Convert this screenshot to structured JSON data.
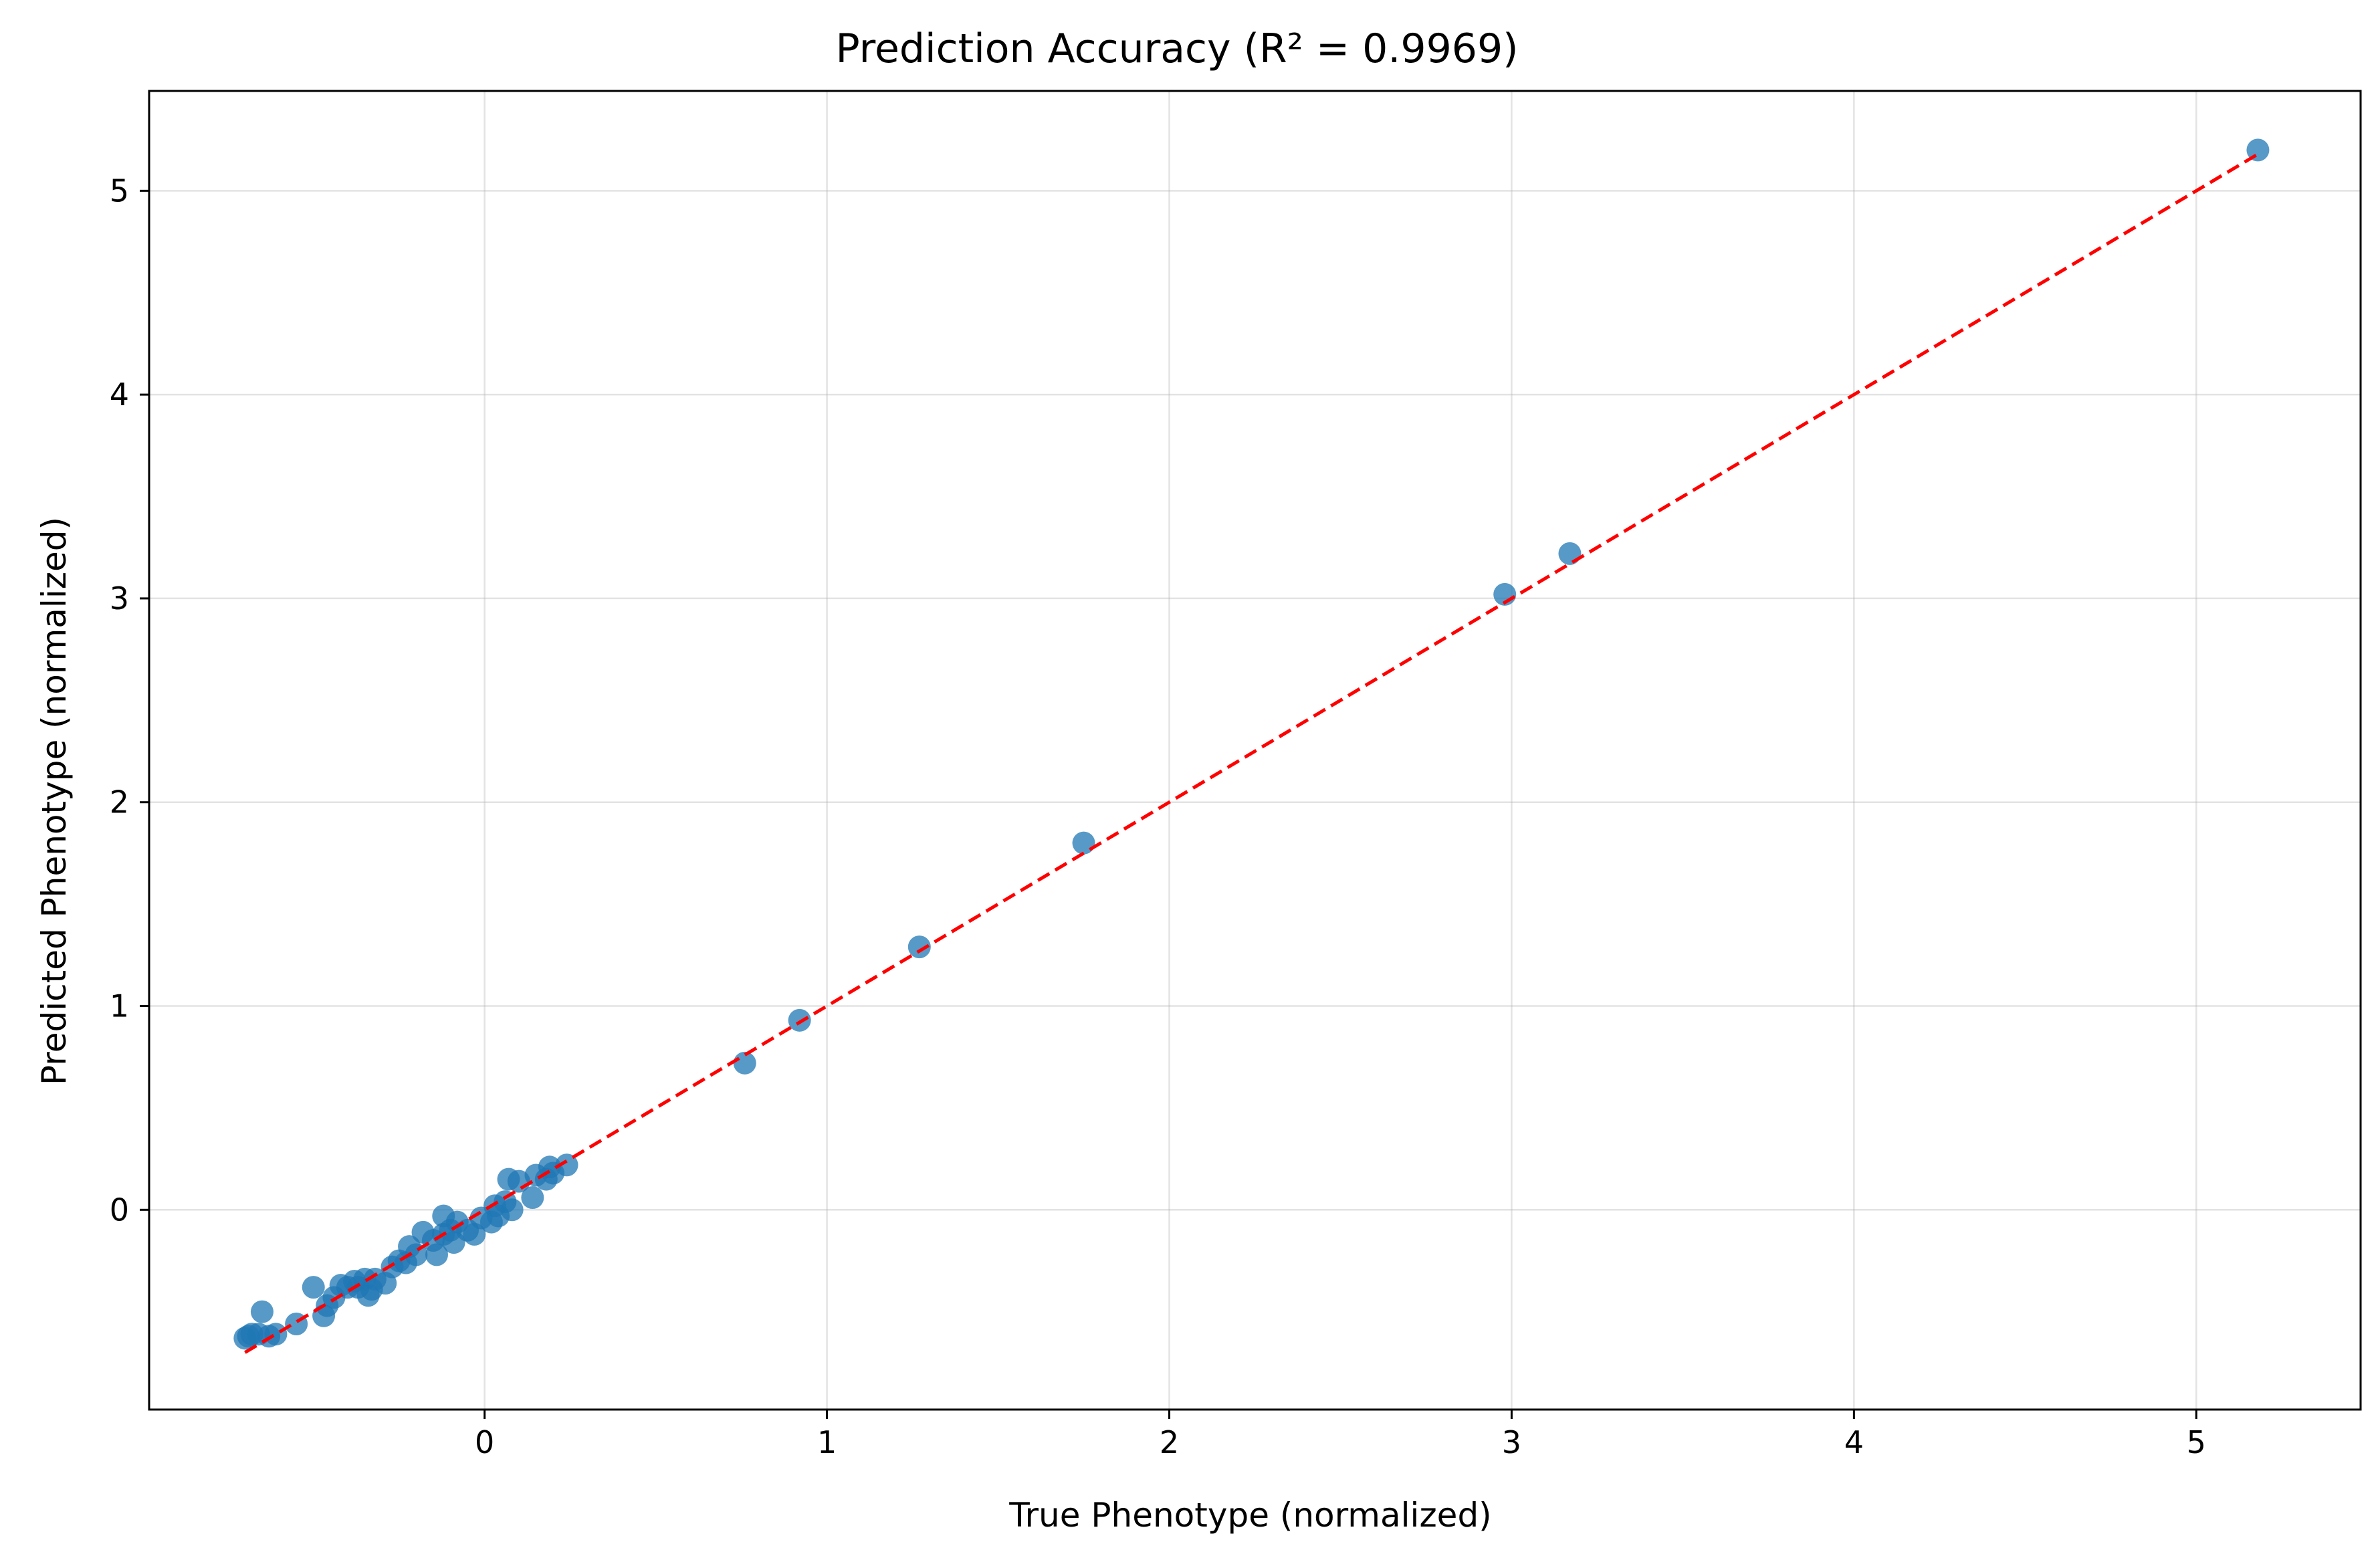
{
  "chart_data": {
    "type": "scatter",
    "title": "Prediction Accuracy (R² = 0.9969)",
    "xlabel": "True Phenotype (normalized)",
    "ylabel": "Predicted Phenotype (normalized)",
    "xlim": [
      -0.98,
      5.48
    ],
    "ylim": [
      -0.98,
      5.49
    ],
    "x_ticks": [
      0,
      1,
      2,
      3,
      4,
      5
    ],
    "y_ticks": [
      0,
      1,
      2,
      3,
      4,
      5
    ],
    "grid": true,
    "point_color": "#1f77b4",
    "point_opacity": 0.75,
    "reference_line": {
      "from": [
        -0.7,
        -0.7
      ],
      "to": [
        5.18,
        5.18
      ],
      "color": "#ff0000",
      "style": "dashed"
    },
    "points": [
      [
        -0.7,
        -0.63
      ],
      [
        -0.69,
        -0.62
      ],
      [
        -0.68,
        -0.61
      ],
      [
        -0.66,
        -0.61
      ],
      [
        -0.65,
        -0.5
      ],
      [
        -0.63,
        -0.62
      ],
      [
        -0.61,
        -0.61
      ],
      [
        -0.55,
        -0.56
      ],
      [
        -0.5,
        -0.38
      ],
      [
        -0.47,
        -0.52
      ],
      [
        -0.46,
        -0.47
      ],
      [
        -0.44,
        -0.43
      ],
      [
        -0.42,
        -0.37
      ],
      [
        -0.4,
        -0.38
      ],
      [
        -0.38,
        -0.35
      ],
      [
        -0.37,
        -0.38
      ],
      [
        -0.35,
        -0.34
      ],
      [
        -0.34,
        -0.42
      ],
      [
        -0.33,
        -0.39
      ],
      [
        -0.32,
        -0.34
      ],
      [
        -0.29,
        -0.36
      ],
      [
        -0.27,
        -0.28
      ],
      [
        -0.25,
        -0.25
      ],
      [
        -0.23,
        -0.26
      ],
      [
        -0.22,
        -0.18
      ],
      [
        -0.2,
        -0.22
      ],
      [
        -0.18,
        -0.11
      ],
      [
        -0.15,
        -0.15
      ],
      [
        -0.14,
        -0.22
      ],
      [
        -0.12,
        -0.12
      ],
      [
        -0.12,
        -0.03
      ],
      [
        -0.1,
        -0.1
      ],
      [
        -0.09,
        -0.16
      ],
      [
        -0.08,
        -0.06
      ],
      [
        -0.05,
        -0.1
      ],
      [
        -0.03,
        -0.12
      ],
      [
        -0.01,
        -0.04
      ],
      [
        0.02,
        -0.06
      ],
      [
        0.03,
        0.02
      ],
      [
        0.04,
        -0.03
      ],
      [
        0.06,
        0.04
      ],
      [
        0.07,
        0.15
      ],
      [
        0.08,
        0.0
      ],
      [
        0.1,
        0.14
      ],
      [
        0.14,
        0.06
      ],
      [
        0.15,
        0.17
      ],
      [
        0.18,
        0.15
      ],
      [
        0.19,
        0.21
      ],
      [
        0.2,
        0.18
      ],
      [
        0.24,
        0.22
      ],
      [
        0.76,
        0.72
      ],
      [
        0.92,
        0.93
      ],
      [
        1.27,
        1.29
      ],
      [
        1.75,
        1.8
      ],
      [
        2.98,
        3.02
      ],
      [
        3.17,
        3.22
      ],
      [
        5.18,
        5.2
      ]
    ]
  }
}
